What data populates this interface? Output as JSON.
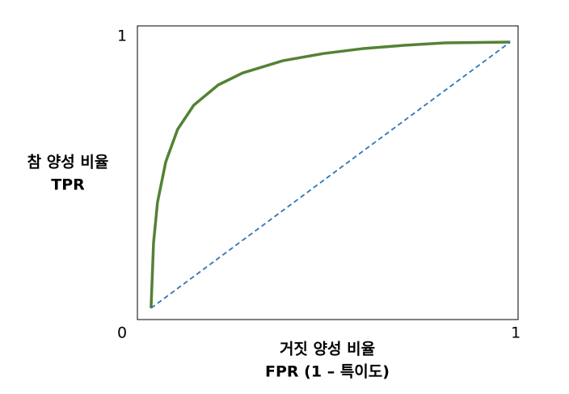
{
  "chart_data": {
    "type": "line",
    "y_label": [
      "참 양성 비율",
      "TPR"
    ],
    "x_label": [
      "거짓 양성 비율",
      "FPR (1 – 특이도)"
    ],
    "xlim": [
      -0.038,
      1.022
    ],
    "ylim": [
      -0.043,
      1.061
    ],
    "xticks": [
      1
    ],
    "yticks": [
      0,
      1
    ],
    "series": [
      {
        "color": "#548235",
        "style": "solid",
        "x": [
          0,
          0.007,
          0.018,
          0.041,
          0.074,
          0.119,
          0.187,
          0.255,
          0.367,
          0.48,
          0.592,
          0.705,
          0.818,
          1
        ],
        "values": [
          0,
          0.246,
          0.398,
          0.55,
          0.672,
          0.763,
          0.839,
          0.884,
          0.93,
          0.957,
          0.976,
          0.988,
          0.997,
          1
        ]
      },
      {
        "color": "#2e75b6",
        "style": "dashed",
        "x": [
          0,
          1
        ],
        "values": [
          0,
          1
        ]
      }
    ]
  }
}
